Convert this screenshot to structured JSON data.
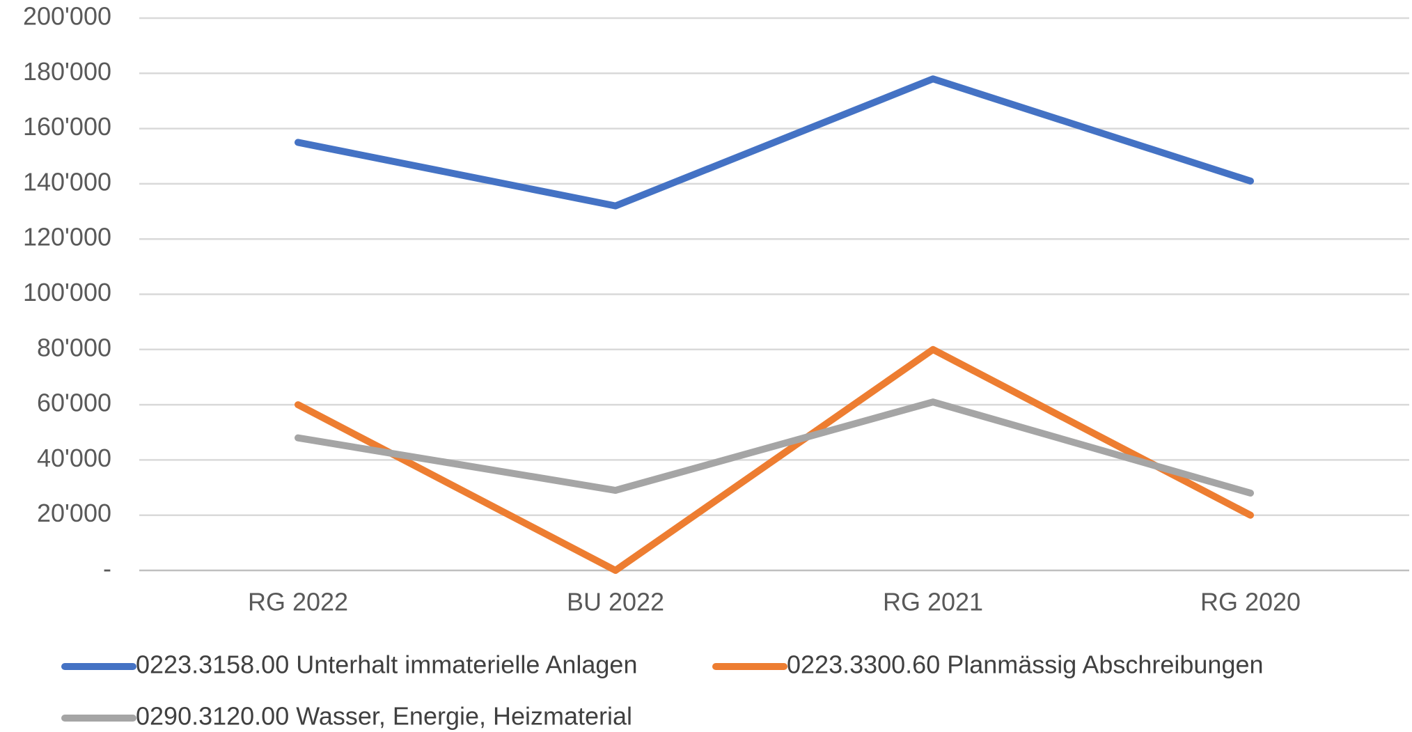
{
  "chart_data": {
    "type": "line",
    "categories": [
      "RG 2022",
      "BU 2022",
      "RG 2021",
      "RG 2020"
    ],
    "series": [
      {
        "name": "0223.3158.00 Unterhalt immaterielle Anlagen",
        "color": "#4472c4",
        "values": [
          155000,
          132000,
          178000,
          141000
        ]
      },
      {
        "name": "0223.3300.60 Planmässig Abschreibungen",
        "color": "#ed7d31",
        "values": [
          60000,
          0,
          80000,
          20000
        ]
      },
      {
        "name": "0290.3120.00 Wasser, Energie, Heizmaterial",
        "color": "#a5a5a5",
        "values": [
          48000,
          29000,
          61000,
          28000
        ]
      }
    ],
    "ylim": [
      0,
      200000
    ],
    "yticks": [
      {
        "value": 0,
        "label": "-"
      },
      {
        "value": 20000,
        "label": "20'000"
      },
      {
        "value": 40000,
        "label": "40'000"
      },
      {
        "value": 60000,
        "label": "60'000"
      },
      {
        "value": 80000,
        "label": "80'000"
      },
      {
        "value": 100000,
        "label": "100'000"
      },
      {
        "value": 120000,
        "label": "120'000"
      },
      {
        "value": 140000,
        "label": "140'000"
      },
      {
        "value": 160000,
        "label": "160'000"
      },
      {
        "value": 180000,
        "label": "180'000"
      },
      {
        "value": 200000,
        "label": "200'000"
      }
    ],
    "grid": true,
    "legend": "bottom"
  }
}
